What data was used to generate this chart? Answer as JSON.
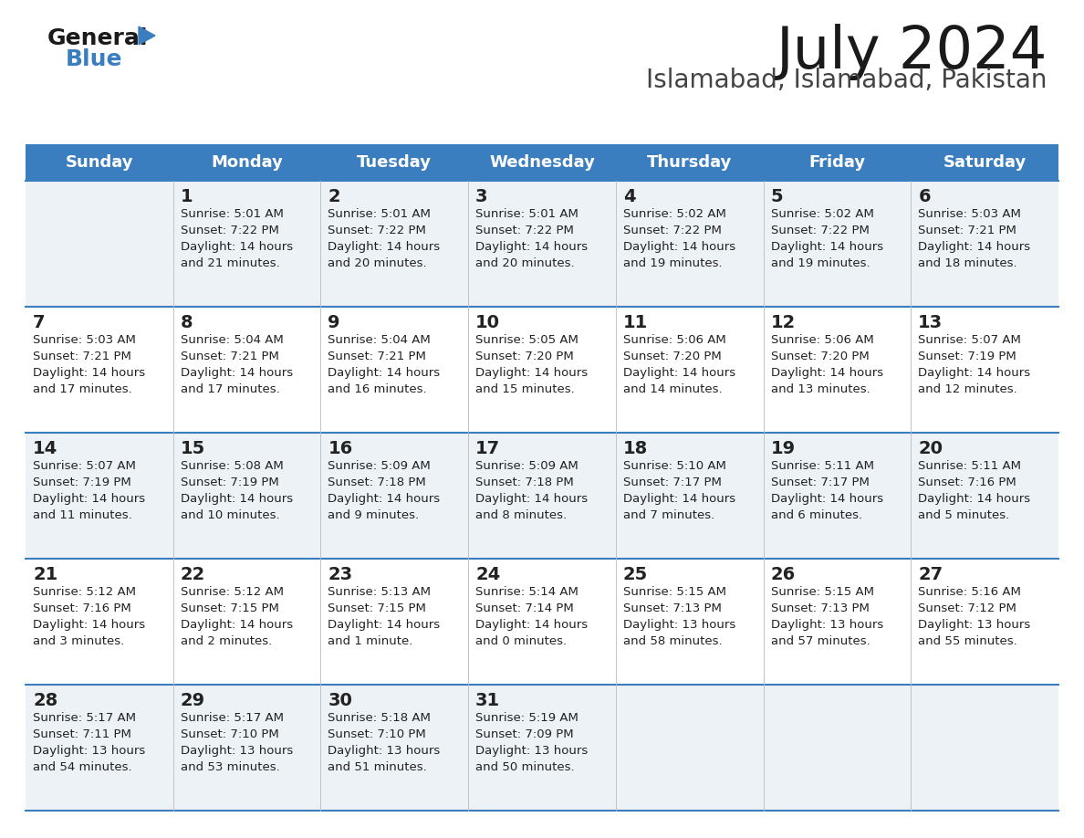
{
  "title": "July 2024",
  "subtitle": "Islamabad, Islamabad, Pakistan",
  "header_bg": "#3a7ebf",
  "header_text": "#ffffff",
  "day_names": [
    "Sunday",
    "Monday",
    "Tuesday",
    "Wednesday",
    "Thursday",
    "Friday",
    "Saturday"
  ],
  "row_bg_light": "#edf2f7",
  "row_bg_white": "#ffffff",
  "divider_color": "#3a7ebf",
  "cell_text_color": "#222222",
  "days": [
    {
      "day": 1,
      "col": 1,
      "row": 0,
      "sunrise": "5:01 AM",
      "sunset": "7:22 PM",
      "daylight_h": "14 hours",
      "daylight_m": "21 minutes."
    },
    {
      "day": 2,
      "col": 2,
      "row": 0,
      "sunrise": "5:01 AM",
      "sunset": "7:22 PM",
      "daylight_h": "14 hours",
      "daylight_m": "20 minutes."
    },
    {
      "day": 3,
      "col": 3,
      "row": 0,
      "sunrise": "5:01 AM",
      "sunset": "7:22 PM",
      "daylight_h": "14 hours",
      "daylight_m": "20 minutes."
    },
    {
      "day": 4,
      "col": 4,
      "row": 0,
      "sunrise": "5:02 AM",
      "sunset": "7:22 PM",
      "daylight_h": "14 hours",
      "daylight_m": "19 minutes."
    },
    {
      "day": 5,
      "col": 5,
      "row": 0,
      "sunrise": "5:02 AM",
      "sunset": "7:22 PM",
      "daylight_h": "14 hours",
      "daylight_m": "19 minutes."
    },
    {
      "day": 6,
      "col": 6,
      "row": 0,
      "sunrise": "5:03 AM",
      "sunset": "7:21 PM",
      "daylight_h": "14 hours",
      "daylight_m": "18 minutes."
    },
    {
      "day": 7,
      "col": 0,
      "row": 1,
      "sunrise": "5:03 AM",
      "sunset": "7:21 PM",
      "daylight_h": "14 hours",
      "daylight_m": "17 minutes."
    },
    {
      "day": 8,
      "col": 1,
      "row": 1,
      "sunrise": "5:04 AM",
      "sunset": "7:21 PM",
      "daylight_h": "14 hours",
      "daylight_m": "17 minutes."
    },
    {
      "day": 9,
      "col": 2,
      "row": 1,
      "sunrise": "5:04 AM",
      "sunset": "7:21 PM",
      "daylight_h": "14 hours",
      "daylight_m": "16 minutes."
    },
    {
      "day": 10,
      "col": 3,
      "row": 1,
      "sunrise": "5:05 AM",
      "sunset": "7:20 PM",
      "daylight_h": "14 hours",
      "daylight_m": "15 minutes."
    },
    {
      "day": 11,
      "col": 4,
      "row": 1,
      "sunrise": "5:06 AM",
      "sunset": "7:20 PM",
      "daylight_h": "14 hours",
      "daylight_m": "14 minutes."
    },
    {
      "day": 12,
      "col": 5,
      "row": 1,
      "sunrise": "5:06 AM",
      "sunset": "7:20 PM",
      "daylight_h": "14 hours",
      "daylight_m": "13 minutes."
    },
    {
      "day": 13,
      "col": 6,
      "row": 1,
      "sunrise": "5:07 AM",
      "sunset": "7:19 PM",
      "daylight_h": "14 hours",
      "daylight_m": "12 minutes."
    },
    {
      "day": 14,
      "col": 0,
      "row": 2,
      "sunrise": "5:07 AM",
      "sunset": "7:19 PM",
      "daylight_h": "14 hours",
      "daylight_m": "11 minutes."
    },
    {
      "day": 15,
      "col": 1,
      "row": 2,
      "sunrise": "5:08 AM",
      "sunset": "7:19 PM",
      "daylight_h": "14 hours",
      "daylight_m": "10 minutes."
    },
    {
      "day": 16,
      "col": 2,
      "row": 2,
      "sunrise": "5:09 AM",
      "sunset": "7:18 PM",
      "daylight_h": "14 hours",
      "daylight_m": "9 minutes."
    },
    {
      "day": 17,
      "col": 3,
      "row": 2,
      "sunrise": "5:09 AM",
      "sunset": "7:18 PM",
      "daylight_h": "14 hours",
      "daylight_m": "8 minutes."
    },
    {
      "day": 18,
      "col": 4,
      "row": 2,
      "sunrise": "5:10 AM",
      "sunset": "7:17 PM",
      "daylight_h": "14 hours",
      "daylight_m": "7 minutes."
    },
    {
      "day": 19,
      "col": 5,
      "row": 2,
      "sunrise": "5:11 AM",
      "sunset": "7:17 PM",
      "daylight_h": "14 hours",
      "daylight_m": "6 minutes."
    },
    {
      "day": 20,
      "col": 6,
      "row": 2,
      "sunrise": "5:11 AM",
      "sunset": "7:16 PM",
      "daylight_h": "14 hours",
      "daylight_m": "5 minutes."
    },
    {
      "day": 21,
      "col": 0,
      "row": 3,
      "sunrise": "5:12 AM",
      "sunset": "7:16 PM",
      "daylight_h": "14 hours",
      "daylight_m": "3 minutes."
    },
    {
      "day": 22,
      "col": 1,
      "row": 3,
      "sunrise": "5:12 AM",
      "sunset": "7:15 PM",
      "daylight_h": "14 hours",
      "daylight_m": "2 minutes."
    },
    {
      "day": 23,
      "col": 2,
      "row": 3,
      "sunrise": "5:13 AM",
      "sunset": "7:15 PM",
      "daylight_h": "14 hours",
      "daylight_m": "1 minute."
    },
    {
      "day": 24,
      "col": 3,
      "row": 3,
      "sunrise": "5:14 AM",
      "sunset": "7:14 PM",
      "daylight_h": "14 hours",
      "daylight_m": "0 minutes."
    },
    {
      "day": 25,
      "col": 4,
      "row": 3,
      "sunrise": "5:15 AM",
      "sunset": "7:13 PM",
      "daylight_h": "13 hours",
      "daylight_m": "58 minutes."
    },
    {
      "day": 26,
      "col": 5,
      "row": 3,
      "sunrise": "5:15 AM",
      "sunset": "7:13 PM",
      "daylight_h": "13 hours",
      "daylight_m": "57 minutes."
    },
    {
      "day": 27,
      "col": 6,
      "row": 3,
      "sunrise": "5:16 AM",
      "sunset": "7:12 PM",
      "daylight_h": "13 hours",
      "daylight_m": "55 minutes."
    },
    {
      "day": 28,
      "col": 0,
      "row": 4,
      "sunrise": "5:17 AM",
      "sunset": "7:11 PM",
      "daylight_h": "13 hours",
      "daylight_m": "54 minutes."
    },
    {
      "day": 29,
      "col": 1,
      "row": 4,
      "sunrise": "5:17 AM",
      "sunset": "7:10 PM",
      "daylight_h": "13 hours",
      "daylight_m": "53 minutes."
    },
    {
      "day": 30,
      "col": 2,
      "row": 4,
      "sunrise": "5:18 AM",
      "sunset": "7:10 PM",
      "daylight_h": "13 hours",
      "daylight_m": "51 minutes."
    },
    {
      "day": 31,
      "col": 3,
      "row": 4,
      "sunrise": "5:19 AM",
      "sunset": "7:09 PM",
      "daylight_h": "13 hours",
      "daylight_m": "50 minutes."
    }
  ]
}
